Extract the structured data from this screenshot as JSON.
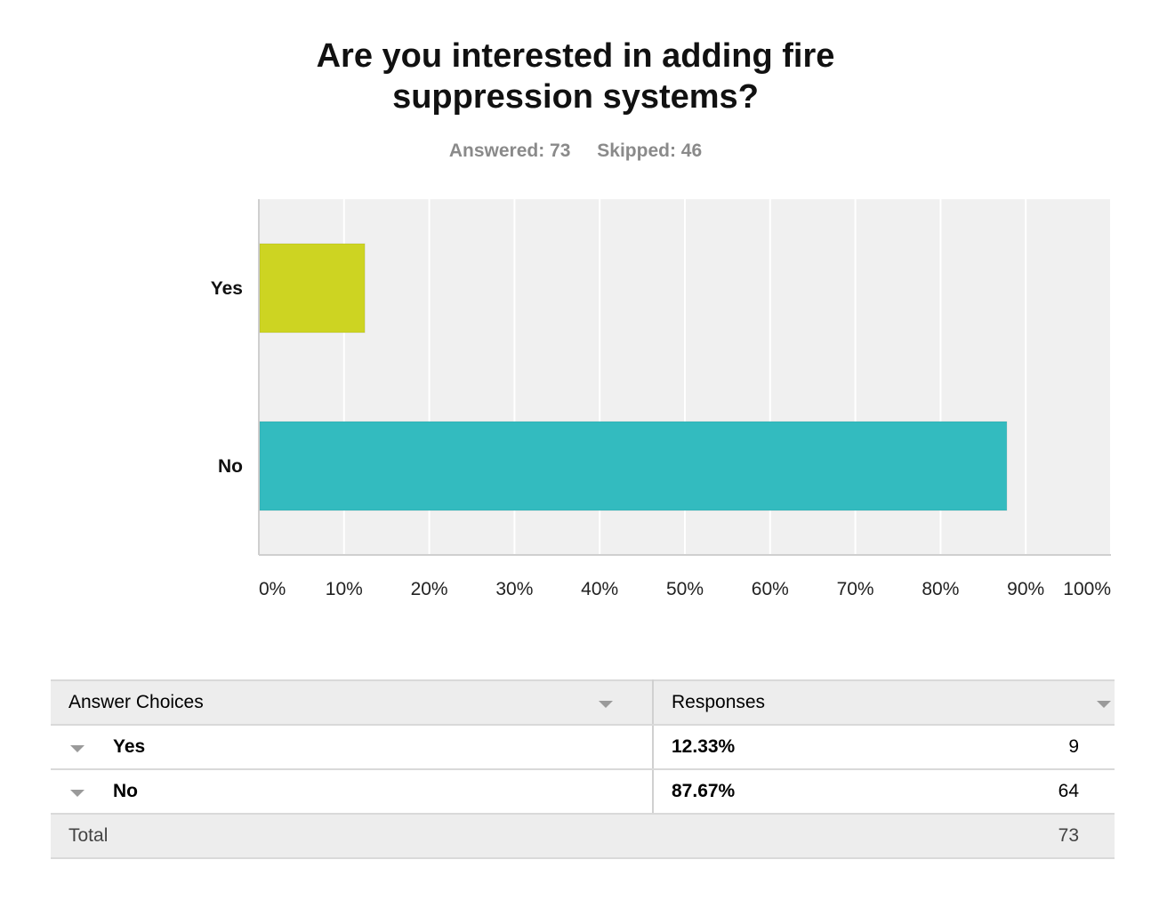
{
  "title_lines": [
    "Are you interested in adding fire",
    "suppression systems?"
  ],
  "stats": {
    "answered": "Answered: 73",
    "skipped": "Skipped: 46"
  },
  "chart_data": {
    "type": "bar",
    "orientation": "horizontal",
    "categories": [
      "Yes",
      "No"
    ],
    "values": [
      12.33,
      87.67
    ],
    "colors": [
      "#cdd422",
      "#33bbbf"
    ],
    "xlim": [
      0,
      100
    ],
    "xticks": [
      "0%",
      "10%",
      "20%",
      "30%",
      "40%",
      "50%",
      "60%",
      "70%",
      "80%",
      "90%",
      "100%"
    ],
    "grid": true,
    "background": "#f0f0f0"
  },
  "table": {
    "headers": {
      "choices": "Answer Choices",
      "responses": "Responses"
    },
    "rows": [
      {
        "choice": "Yes",
        "percent": "12.33%",
        "count": "9"
      },
      {
        "choice": "No",
        "percent": "87.67%",
        "count": "64"
      }
    ],
    "total": {
      "label": "Total",
      "count": "73"
    }
  }
}
